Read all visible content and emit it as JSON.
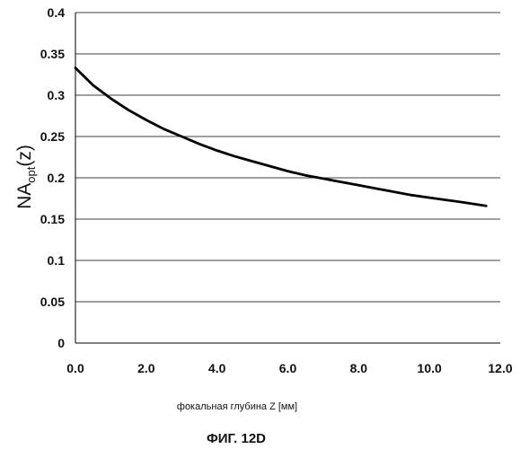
{
  "chart_data": {
    "type": "line",
    "xlabel": "фокальная глубина Z [мм]",
    "ylabel": {
      "main": "NA",
      "sub": "opt",
      "suffix": "(z)"
    },
    "caption": "ФИГ. 12D",
    "xlim": [
      0,
      12
    ],
    "ylim": [
      0,
      0.4
    ],
    "x_ticks": [
      "0.0",
      "2.0",
      "4.0",
      "6.0",
      "8.0",
      "10.0",
      "12.0"
    ],
    "y_ticks": [
      "0",
      "0.05",
      "0.1",
      "0.15",
      "0.2",
      "0.25",
      "0.3",
      "0.35",
      "0.4"
    ],
    "grid": "horizontal",
    "series": [
      {
        "color": "#000000",
        "x": [
          0.0,
          0.5,
          1.0,
          1.5,
          2.0,
          2.5,
          3.0,
          3.5,
          4.0,
          4.5,
          5.0,
          5.5,
          6.0,
          6.5,
          7.0,
          7.5,
          8.0,
          8.5,
          9.0,
          9.5,
          10.0,
          10.5,
          11.0,
          11.6
        ],
        "y": [
          0.333,
          0.312,
          0.296,
          0.282,
          0.27,
          0.259,
          0.25,
          0.241,
          0.233,
          0.226,
          0.22,
          0.214,
          0.208,
          0.203,
          0.199,
          0.195,
          0.191,
          0.187,
          0.183,
          0.179,
          0.176,
          0.173,
          0.17,
          0.166
        ]
      }
    ]
  }
}
